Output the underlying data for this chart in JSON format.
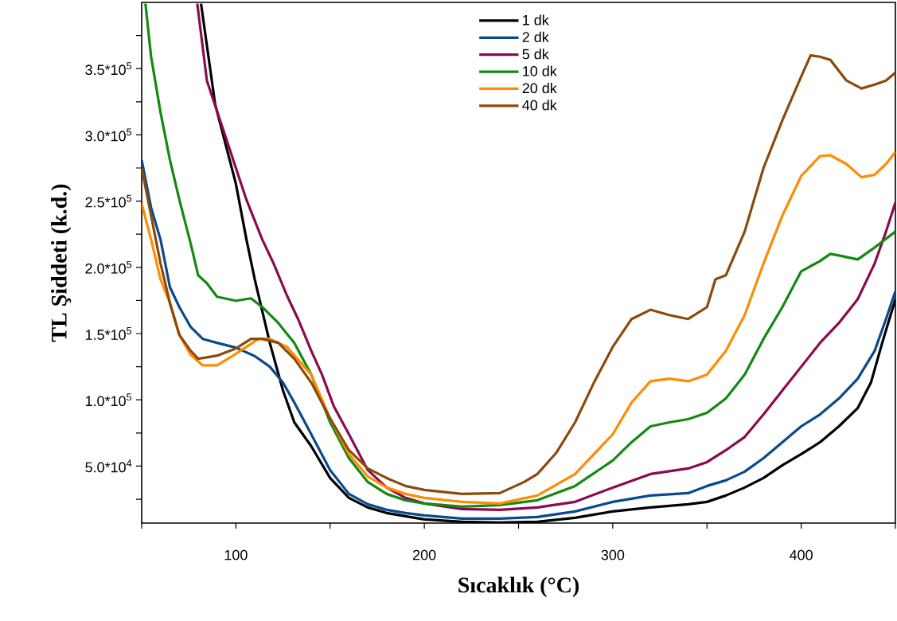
{
  "chart_data": {
    "type": "line",
    "xlabel": "Sıcaklık (°C)",
    "ylabel": "TL Şiddeti (k.d.)",
    "xlim": [
      50,
      450
    ],
    "ylim": [
      7000,
      400000
    ],
    "xticks": [
      {
        "value": 50,
        "label": null
      },
      100,
      {
        "value": 150,
        "label": null
      },
      200,
      {
        "value": 250,
        "label": null
      },
      300,
      {
        "value": 350,
        "label": null
      },
      400,
      {
        "value": 450,
        "label": null
      }
    ],
    "yticks": [
      {
        "value": 25000,
        "label": null
      },
      {
        "value": 50000,
        "label": "5.0*10$^{4}$"
      },
      {
        "value": 75000,
        "label": null
      },
      {
        "value": 100000,
        "label": "1.0*10$^{5}$"
      },
      {
        "value": 125000,
        "label": null
      },
      {
        "value": 150000,
        "label": "1.5*10$^{5}$"
      },
      {
        "value": 175000,
        "label": null
      },
      {
        "value": 200000,
        "label": "2.0*10$^{5}$"
      },
      {
        "value": 225000,
        "label": null
      },
      {
        "value": 250000,
        "label": "2.5*10$^{5}$"
      },
      {
        "value": 275000,
        "label": null
      },
      {
        "value": 300000,
        "label": "3.0*10$^{5}$"
      },
      {
        "value": 325000,
        "label": null
      },
      {
        "value": 350000,
        "label": "3.5*10$^{5}$"
      },
      {
        "value": 375000,
        "label": null
      }
    ],
    "legend": "top",
    "series": [
      {
        "name": "1 dk",
        "color": "#000000",
        "x": [
          81.5,
          89,
          100,
          105.6,
          110,
          118,
          125,
          131,
          140,
          150,
          160,
          170,
          180,
          190,
          200,
          220,
          240,
          260,
          280,
          300,
          320,
          340,
          350,
          360,
          370,
          380,
          390,
          400,
          410,
          420,
          430,
          437,
          443,
          450
        ],
        "values": [
          399000,
          323000,
          263000,
          221000,
          191000,
          143000,
          107000,
          83000,
          65000,
          41000,
          26000,
          18800,
          14600,
          12200,
          9800,
          8000,
          7400,
          8000,
          11000,
          15800,
          18800,
          21200,
          23000,
          27800,
          33800,
          41000,
          50600,
          59000,
          68000,
          80000,
          93800,
          113000,
          143000,
          176000
        ]
      },
      {
        "name": "2 dk",
        "color": "#0a4a8c",
        "x": [
          50,
          55,
          60,
          65,
          70,
          76,
          82.4,
          90,
          100,
          110,
          118,
          125,
          131,
          140,
          150,
          160,
          170,
          180,
          190,
          200,
          220,
          240,
          260,
          280,
          300,
          320,
          340,
          350,
          360,
          370,
          380,
          390,
          400,
          410,
          420,
          430,
          439,
          445,
          450
        ],
        "values": [
          281000,
          245000,
          221000,
          185000,
          170000,
          155000,
          146000,
          143000,
          139400,
          133000,
          125000,
          113000,
          98000,
          74000,
          47000,
          29000,
          21200,
          17000,
          14600,
          12800,
          10400,
          10400,
          11600,
          15800,
          23000,
          27800,
          29600,
          35000,
          39200,
          45800,
          56000,
          68000,
          80000,
          89000,
          101000,
          116000,
          137000,
          161000,
          182000
        ]
      },
      {
        "name": "5 dk",
        "color": "#8b0a50",
        "x": [
          79.5,
          84.6,
          93,
          100,
          105.6,
          114,
          120,
          127,
          133,
          140,
          145.7,
          152,
          160,
          170,
          180,
          190,
          200,
          220,
          240,
          260,
          280,
          300,
          320,
          340,
          350,
          360,
          370,
          380,
          390,
          400,
          410,
          420,
          430,
          439,
          445,
          450
        ],
        "values": [
          399000,
          341000,
          305000,
          275000,
          251000,
          221000,
          203000,
          179000,
          161000,
          137000,
          119000,
          95000,
          74000,
          47000,
          33800,
          26000,
          21800,
          17600,
          17000,
          18800,
          23000,
          33800,
          44000,
          48200,
          53000,
          62000,
          72000,
          89000,
          107000,
          125000,
          143000,
          158000,
          176000,
          203000,
          227000,
          249000
        ]
      },
      {
        "name": "10 dk",
        "color": "#128a12",
        "x": [
          52,
          55,
          60,
          65,
          70,
          76,
          80,
          84.6,
          90,
          100,
          108,
          114,
          122.5,
          131,
          140,
          150,
          160,
          170,
          180,
          190,
          200,
          220,
          240,
          260,
          280,
          300,
          310,
          320,
          330,
          340,
          350,
          360,
          370,
          380,
          390,
          400,
          410,
          415.5,
          420,
          430,
          439,
          450
        ],
        "values": [
          399000,
          359000,
          317000,
          281000,
          251000,
          218000,
          194000,
          188000,
          177800,
          174800,
          176600,
          170000,
          158000,
          143000,
          119000,
          83000,
          56000,
          38000,
          29000,
          24200,
          21800,
          19400,
          20600,
          24200,
          35000,
          54200,
          68000,
          80000,
          83000,
          85400,
          90200,
          101000,
          119000,
          146000,
          170000,
          197000,
          204800,
          210200,
          209000,
          206000,
          215000,
          227000
        ]
      },
      {
        "name": "20 dk",
        "color": "#ff8c00",
        "x": [
          50,
          55,
          60,
          65,
          70,
          76,
          82.4,
          90,
          97,
          105.6,
          112,
          118,
          127,
          140,
          150,
          160,
          170,
          180,
          190,
          200,
          220,
          240,
          260,
          280,
          300,
          310,
          320,
          330,
          340,
          350,
          360,
          370,
          380,
          390,
          400,
          410,
          415.5,
          424,
          432,
          439,
          445,
          450
        ],
        "values": [
          248000,
          221000,
          191000,
          173000,
          149000,
          134000,
          126000,
          126000,
          132000,
          140000,
          146000,
          146000,
          140000,
          119000,
          86000,
          59000,
          42200,
          33800,
          29000,
          26000,
          23000,
          21800,
          27800,
          44000,
          74000,
          98000,
          114000,
          116000,
          114000,
          119000,
          137000,
          164000,
          203000,
          239000,
          269000,
          284000,
          284600,
          278000,
          268000,
          270000,
          278000,
          287000
        ]
      },
      {
        "name": "40 dk",
        "color": "#8b4a0a",
        "x": [
          50,
          55,
          60,
          65,
          70,
          76,
          80,
          90,
          100,
          108,
          114,
          122.5,
          131,
          140,
          150,
          160,
          170,
          180,
          190,
          200,
          220,
          240,
          253,
          260,
          270,
          280,
          290,
          300,
          310,
          320,
          330,
          340,
          350,
          354.5,
          360,
          370,
          380,
          390,
          400,
          405,
          410,
          415.5,
          424,
          432,
          439,
          445,
          450
        ],
        "values": [
          275000,
          239000,
          203000,
          173000,
          149000,
          137000,
          131000,
          133400,
          138800,
          146000,
          146000,
          143000,
          131000,
          113000,
          86000,
          62000,
          48200,
          41000,
          35000,
          32000,
          29000,
          29600,
          38000,
          44000,
          60000,
          83000,
          113000,
          140000,
          161000,
          168000,
          164000,
          161000,
          170000,
          191000,
          194000,
          227000,
          275000,
          311000,
          344000,
          360000,
          359000,
          356600,
          341000,
          335000,
          338000,
          341000,
          347000
        ]
      }
    ]
  }
}
